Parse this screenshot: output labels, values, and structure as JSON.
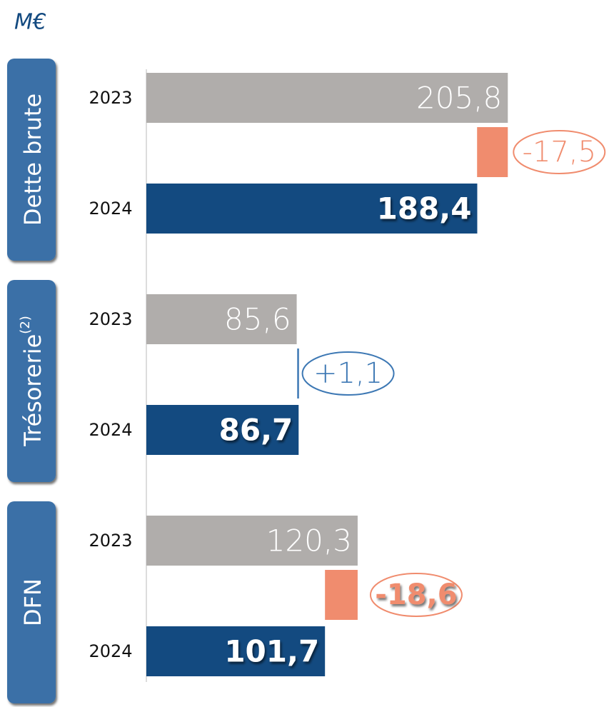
{
  "chart_data": {
    "type": "bar",
    "unit": "M€",
    "groups": [
      {
        "name": "Dette brute",
        "categories": [
          "2023",
          "2024"
        ],
        "values": [
          205.8,
          188.4
        ],
        "value_labels": [
          "205,8",
          "188,4"
        ],
        "change": -17.5,
        "change_label": "-17,5",
        "change_color": "#f08c6e"
      },
      {
        "name": "Trésorerie",
        "superscript": "(2)",
        "categories": [
          "2023",
          "2024"
        ],
        "values": [
          85.6,
          86.7
        ],
        "value_labels": [
          "85,6",
          "86,7"
        ],
        "change": 1.1,
        "change_label": "+1,1",
        "change_color": "#3d78b4"
      },
      {
        "name": "DFN",
        "categories": [
          "2023",
          "2024"
        ],
        "values": [
          120.3,
          101.7
        ],
        "value_labels": [
          "120,3",
          "101,7"
        ],
        "change": -18.6,
        "change_label": "-18,6",
        "change_color": "#f08c6e"
      }
    ],
    "colors": [
      "#b0adab",
      "#134a80"
    ]
  }
}
